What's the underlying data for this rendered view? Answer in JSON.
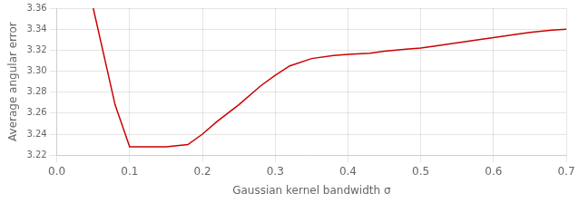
{
  "chart_data": {
    "type": "line",
    "x": [
      0.05,
      0.08,
      0.1,
      0.12,
      0.15,
      0.18,
      0.2,
      0.22,
      0.25,
      0.28,
      0.3,
      0.32,
      0.35,
      0.38,
      0.4,
      0.43,
      0.45,
      0.48,
      0.5,
      0.52,
      0.55,
      0.58,
      0.6,
      0.63,
      0.65,
      0.68,
      0.7
    ],
    "values": [
      3.36,
      3.268,
      3.228,
      3.228,
      3.228,
      3.23,
      3.24,
      3.252,
      3.268,
      3.286,
      3.296,
      3.305,
      3.312,
      3.315,
      3.316,
      3.317,
      3.319,
      3.321,
      3.322,
      3.324,
      3.327,
      3.33,
      3.332,
      3.335,
      3.337,
      3.339,
      3.34
    ],
    "color": "#cc0000",
    "xlabel": "Gaussian kernel bandwidth σ",
    "ylabel": "Average angular error",
    "xlim": [
      0.0,
      0.7
    ],
    "ylim": [
      3.22,
      3.36
    ],
    "xticks": [
      {
        "value": 0.0,
        "label": "0.0"
      },
      0.1,
      0.2,
      0.3,
      0.4,
      0.5,
      0.6,
      0.7
    ],
    "yticks": [
      3.22,
      3.24,
      3.26,
      3.28,
      {
        "value": 3.3,
        "label": "3.30"
      },
      3.32,
      3.34,
      3.36
    ],
    "grid": true
  }
}
